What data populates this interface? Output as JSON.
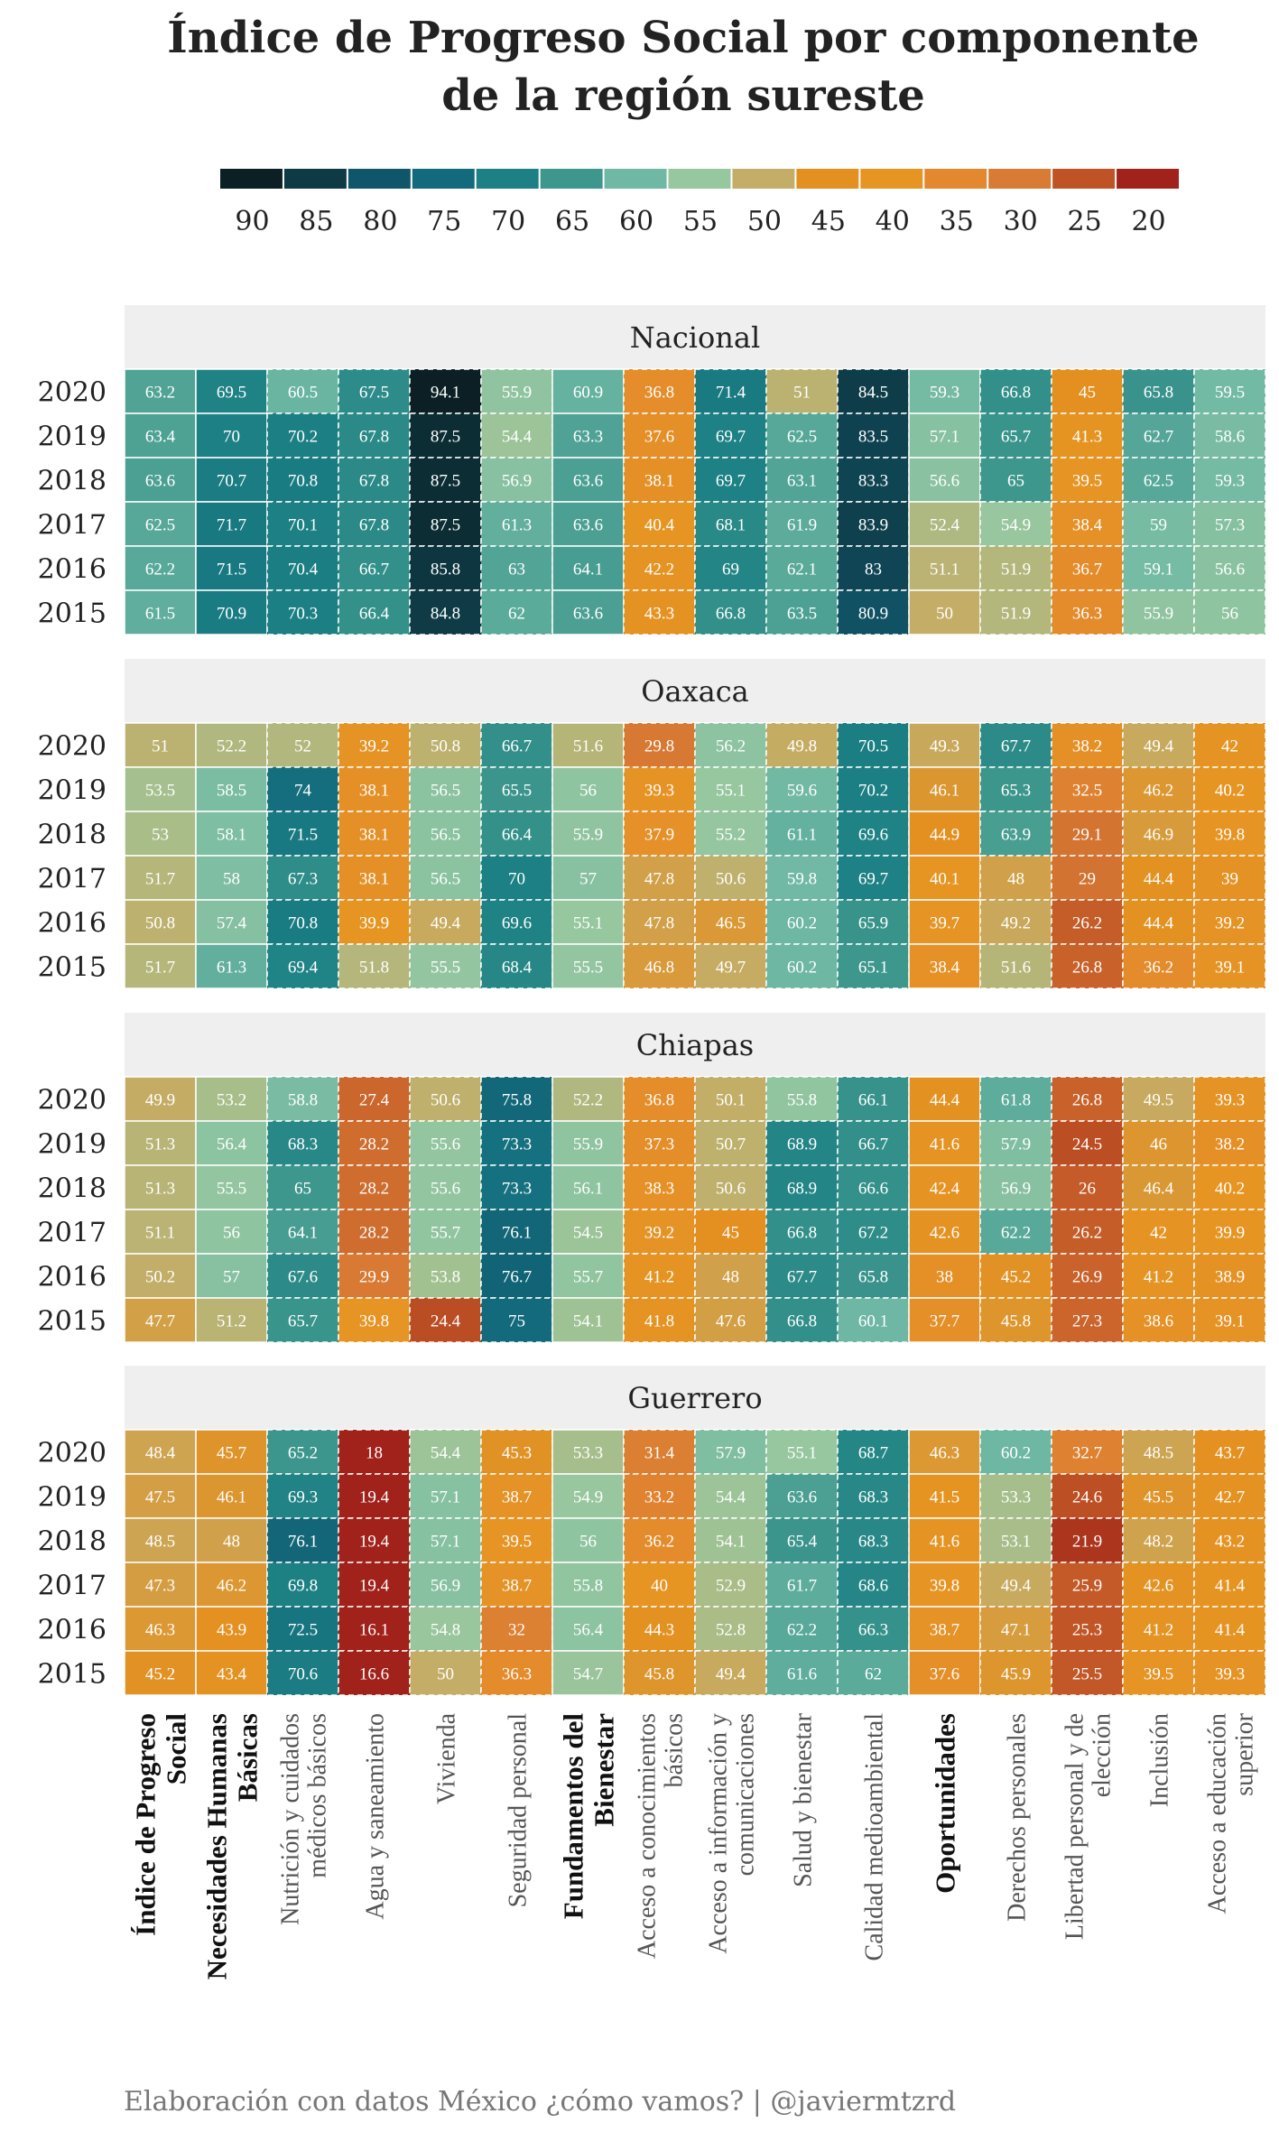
{
  "title_lines": [
    "Índice de Progreso Social por componente",
    "de la región sureste"
  ],
  "caption": "Elaboración con datos México ¿cómo vamos? | @javiermtzrd",
  "chart_data": {
    "type": "heatmap",
    "legend": {
      "labels": [
        "90",
        "85",
        "80",
        "75",
        "70",
        "65",
        "60",
        "55",
        "50",
        "45",
        "40",
        "35",
        "30",
        "25",
        "20"
      ],
      "colors": [
        "#0b1f24",
        "#0e3a45",
        "#10566a",
        "#126a7c",
        "#1c8084",
        "#3e978d",
        "#6fb8a4",
        "#97c79f",
        "#c4ad66",
        "#e39021",
        "#e69523",
        "#e3882e",
        "#d87b34",
        "#bf5325",
        "#a1221a"
      ]
    },
    "years": [
      "2020",
      "2019",
      "2018",
      "2017",
      "2016",
      "2015"
    ],
    "columns": [
      {
        "label": [
          "Índice de Progreso",
          "Social"
        ],
        "bold": true
      },
      {
        "label": [
          "Necesidades Humanas",
          "Básicas"
        ],
        "bold": true
      },
      {
        "label": [
          "Nutrición y cuidados",
          "médicos básicos"
        ],
        "bold": false
      },
      {
        "label": [
          "Agua y saneamiento"
        ],
        "bold": false
      },
      {
        "label": [
          "Vivienda"
        ],
        "bold": false
      },
      {
        "label": [
          "Seguridad personal"
        ],
        "bold": false
      },
      {
        "label": [
          "Fundamentos del",
          "Bienestar"
        ],
        "bold": true
      },
      {
        "label": [
          "Acceso a conocimientos",
          "básicos"
        ],
        "bold": false
      },
      {
        "label": [
          "Acceso a información y",
          "comunicaciones"
        ],
        "bold": false
      },
      {
        "label": [
          "Salud y bienestar"
        ],
        "bold": false
      },
      {
        "label": [
          "Calidad medioambiental"
        ],
        "bold": false
      },
      {
        "label": [
          "Oportunidades"
        ],
        "bold": true
      },
      {
        "label": [
          "Derechos personales"
        ],
        "bold": false
      },
      {
        "label": [
          "Libertad personal y de",
          "elección"
        ],
        "bold": false
      },
      {
        "label": [
          "Inclusión"
        ],
        "bold": false
      },
      {
        "label": [
          "Acceso a educación",
          "superior"
        ],
        "bold": false
      }
    ],
    "panels": [
      {
        "name": "Nacional",
        "values": [
          [
            "63.2",
            "69.5",
            "60.5",
            "67.5",
            "94.1",
            "55.9",
            "60.9",
            "36.8",
            "71.4",
            "51",
            "84.5",
            "59.3",
            "66.8",
            "45",
            "65.8",
            "59.5"
          ],
          [
            "63.4",
            "70",
            "70.2",
            "67.8",
            "87.5",
            "54.4",
            "63.3",
            "37.6",
            "69.7",
            "62.5",
            "83.5",
            "57.1",
            "65.7",
            "41.3",
            "62.7",
            "58.6"
          ],
          [
            "63.6",
            "70.7",
            "70.8",
            "67.8",
            "87.5",
            "56.9",
            "63.6",
            "38.1",
            "69.7",
            "63.1",
            "83.3",
            "56.6",
            "65",
            "39.5",
            "62.5",
            "59.3"
          ],
          [
            "62.5",
            "71.7",
            "70.1",
            "67.8",
            "87.5",
            "61.3",
            "63.6",
            "40.4",
            "68.1",
            "61.9",
            "83.9",
            "52.4",
            "54.9",
            "38.4",
            "59",
            "57.3"
          ],
          [
            "62.2",
            "71.5",
            "70.4",
            "66.7",
            "85.8",
            "63",
            "64.1",
            "42.2",
            "69",
            "62.1",
            "83",
            "51.1",
            "51.9",
            "36.7",
            "59.1",
            "56.6"
          ],
          [
            "61.5",
            "70.9",
            "70.3",
            "66.4",
            "84.8",
            "62",
            "63.6",
            "43.3",
            "66.8",
            "63.5",
            "80.9",
            "50",
            "51.9",
            "36.3",
            "55.9",
            "56"
          ]
        ]
      },
      {
        "name": "Oaxaca",
        "values": [
          [
            "51",
            "52.2",
            "52",
            "39.2",
            "50.8",
            "66.7",
            "51.6",
            "29.8",
            "56.2",
            "49.8",
            "70.5",
            "49.3",
            "67.7",
            "38.2",
            "49.4",
            "42"
          ],
          [
            "53.5",
            "58.5",
            "74",
            "38.1",
            "56.5",
            "65.5",
            "56",
            "39.3",
            "55.1",
            "59.6",
            "70.2",
            "46.1",
            "65.3",
            "32.5",
            "46.2",
            "40.2"
          ],
          [
            "53",
            "58.1",
            "71.5",
            "38.1",
            "56.5",
            "66.4",
            "55.9",
            "37.9",
            "55.2",
            "61.1",
            "69.6",
            "44.9",
            "63.9",
            "29.1",
            "46.9",
            "39.8"
          ],
          [
            "51.7",
            "58",
            "67.3",
            "38.1",
            "56.5",
            "70",
            "57",
            "47.8",
            "50.6",
            "59.8",
            "69.7",
            "40.1",
            "48",
            "29",
            "44.4",
            "39"
          ],
          [
            "50.8",
            "57.4",
            "70.8",
            "39.9",
            "49.4",
            "69.6",
            "55.1",
            "47.8",
            "46.5",
            "60.2",
            "65.9",
            "39.7",
            "49.2",
            "26.2",
            "44.4",
            "39.2"
          ],
          [
            "51.7",
            "61.3",
            "69.4",
            "51.8",
            "55.5",
            "68.4",
            "55.5",
            "46.8",
            "49.7",
            "60.2",
            "65.1",
            "38.4",
            "51.6",
            "26.8",
            "36.2",
            "39.1"
          ]
        ]
      },
      {
        "name": "Chiapas",
        "values": [
          [
            "49.9",
            "53.2",
            "58.8",
            "27.4",
            "50.6",
            "75.8",
            "52.2",
            "36.8",
            "50.1",
            "55.8",
            "66.1",
            "44.4",
            "61.8",
            "26.8",
            "49.5",
            "39.3"
          ],
          [
            "51.3",
            "56.4",
            "68.3",
            "28.2",
            "55.6",
            "73.3",
            "55.9",
            "37.3",
            "50.7",
            "68.9",
            "66.7",
            "41.6",
            "57.9",
            "24.5",
            "46",
            "38.2"
          ],
          [
            "51.3",
            "55.5",
            "65",
            "28.2",
            "55.6",
            "73.3",
            "56.1",
            "38.3",
            "50.6",
            "68.9",
            "66.6",
            "42.4",
            "56.9",
            "26",
            "46.4",
            "40.2"
          ],
          [
            "51.1",
            "56",
            "64.1",
            "28.2",
            "55.7",
            "76.1",
            "54.5",
            "39.2",
            "45",
            "66.8",
            "67.2",
            "42.6",
            "62.2",
            "26.2",
            "42",
            "39.9"
          ],
          [
            "50.2",
            "57",
            "67.6",
            "29.9",
            "53.8",
            "76.7",
            "55.7",
            "41.2",
            "48",
            "67.7",
            "65.8",
            "38",
            "45.2",
            "26.9",
            "41.2",
            "38.9"
          ],
          [
            "47.7",
            "51.2",
            "65.7",
            "39.8",
            "24.4",
            "75",
            "54.1",
            "41.8",
            "47.6",
            "66.8",
            "60.1",
            "37.7",
            "45.8",
            "27.3",
            "38.6",
            "39.1"
          ]
        ]
      },
      {
        "name": "Guerrero",
        "values": [
          [
            "48.4",
            "45.7",
            "65.2",
            "18",
            "54.4",
            "45.3",
            "53.3",
            "31.4",
            "57.9",
            "55.1",
            "68.7",
            "46.3",
            "60.2",
            "32.7",
            "48.5",
            "43.7"
          ],
          [
            "47.5",
            "46.1",
            "69.3",
            "19.4",
            "57.1",
            "38.7",
            "54.9",
            "33.2",
            "54.4",
            "63.6",
            "68.3",
            "41.5",
            "53.3",
            "24.6",
            "45.5",
            "42.7"
          ],
          [
            "48.5",
            "48",
            "76.1",
            "19.4",
            "57.1",
            "39.5",
            "56",
            "36.2",
            "54.1",
            "65.4",
            "68.3",
            "41.6",
            "53.1",
            "21.9",
            "48.2",
            "43.2"
          ],
          [
            "47.3",
            "46.2",
            "69.8",
            "19.4",
            "56.9",
            "38.7",
            "55.8",
            "40",
            "52.9",
            "61.7",
            "68.6",
            "39.8",
            "49.4",
            "25.9",
            "42.6",
            "41.4"
          ],
          [
            "46.3",
            "43.9",
            "72.5",
            "16.1",
            "54.8",
            "32",
            "56.4",
            "44.3",
            "52.8",
            "62.2",
            "66.3",
            "38.7",
            "47.1",
            "25.3",
            "41.2",
            "41.4"
          ],
          [
            "45.2",
            "43.4",
            "70.6",
            "16.6",
            "50",
            "36.3",
            "54.7",
            "45.8",
            "49.4",
            "61.6",
            "62",
            "37.6",
            "45.9",
            "25.5",
            "39.5",
            "39.3"
          ]
        ]
      }
    ]
  }
}
